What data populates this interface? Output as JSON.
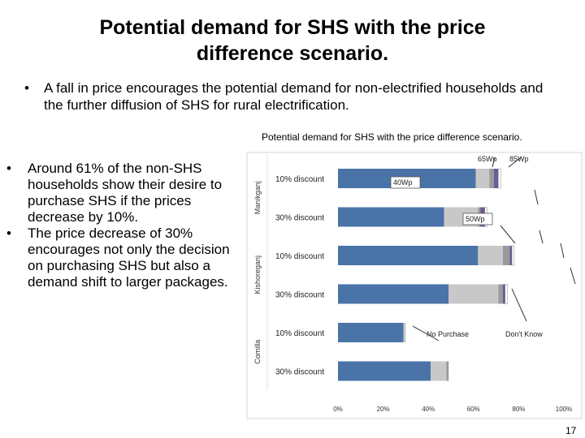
{
  "slide": {
    "title": "Potential demand for SHS with the price\ndifference scenario.",
    "top_bullet": "A fall in price encourages the potential demand for non-electrified households and the further diffusion of SHS for rural electrification.",
    "bullet_symbol": "•",
    "caption": "Potential demand for SHS with the price difference scenario.",
    "left_bullets": [
      "Around 61% of the non-SHS households show their desire to purchase SHS if the prices decrease by 10%.",
      "The price decrease of 30% encourages not only the decision on purchasing SHS but also a demand shift to larger packages."
    ],
    "page_number": "17"
  },
  "chart_data": {
    "type": "bar",
    "orientation": "horizontal",
    "stacked": true,
    "groups": [
      "Manikganj",
      "Kishoreganj",
      "Comilla"
    ],
    "categories": [
      "10% discount",
      "30% discount",
      "10% discount",
      "30% discount",
      "10% discount",
      "30% discount"
    ],
    "category_groups": [
      "Manikganj",
      "Manikganj",
      "Kishoreganj",
      "Kishoreganj",
      "Comilla",
      "Comilla"
    ],
    "series": [
      {
        "name": "No Purchase",
        "color": "#4a73a8",
        "values": [
          61,
          47,
          62,
          49,
          29,
          41
        ]
      },
      {
        "name": "40Wp",
        "color": "#c8c8c8",
        "values": [
          6,
          15,
          11,
          22,
          1,
          7
        ]
      },
      {
        "name": "50Wp",
        "color": "#9a9a9a",
        "values": [
          2,
          1,
          3,
          2,
          0,
          1
        ]
      },
      {
        "name": "65Wp",
        "color": "#6e5a94",
        "values": [
          2,
          2,
          1,
          1,
          0,
          0
        ]
      },
      {
        "name": "85Wp",
        "color": "#ffffff",
        "values": [
          1,
          1,
          1,
          1,
          0,
          0
        ]
      },
      {
        "name": "Don't Know",
        "color": "#ffffff",
        "values": [
          28,
          34,
          22,
          25,
          70,
          51
        ]
      }
    ],
    "annotations": [
      "65Wp",
      "85Wp",
      "40Wp",
      "50Wp",
      "No Purchase",
      "Don't Know"
    ],
    "xlim": [
      0,
      100
    ],
    "xticks": [
      "0%",
      "20%",
      "40%",
      "60%",
      "80%",
      "100%"
    ],
    "grid": false
  }
}
